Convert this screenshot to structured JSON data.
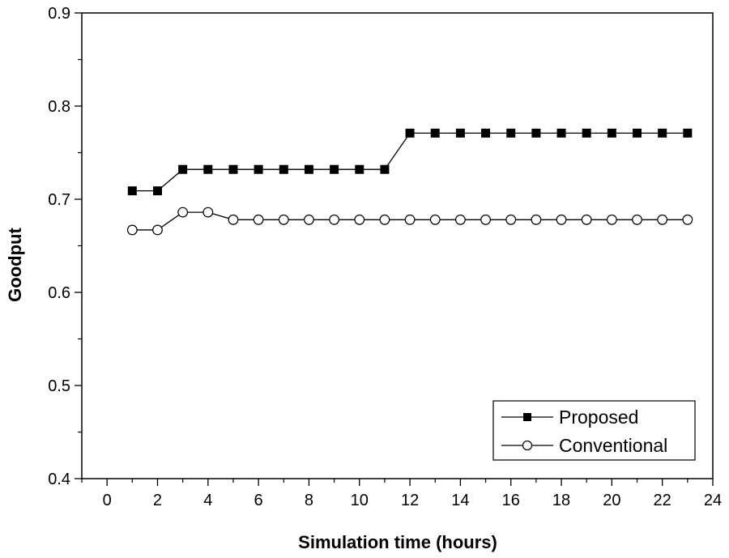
{
  "chart_data": {
    "type": "line",
    "title": "",
    "xlabel": "Simulation time (hours)",
    "ylabel": "Goodput",
    "xlim": [
      -1,
      24
    ],
    "ylim": [
      0.4,
      0.9
    ],
    "xticks": [
      0,
      2,
      4,
      6,
      8,
      10,
      12,
      14,
      16,
      18,
      20,
      22,
      24
    ],
    "xticks_minor": [
      -1,
      1,
      3,
      5,
      7,
      9,
      11,
      13,
      15,
      17,
      19,
      21,
      23
    ],
    "yticks": [
      0.4,
      0.5,
      0.6,
      0.7,
      0.8,
      0.9
    ],
    "xtick_labels": [
      "0",
      "2",
      "4",
      "6",
      "8",
      "10",
      "12",
      "14",
      "16",
      "18",
      "20",
      "22",
      "24"
    ],
    "ytick_labels": [
      "0.4",
      "0.5",
      "0.6",
      "0.7",
      "0.8",
      "0.9"
    ],
    "grid": false,
    "legend_position": "bottom-right",
    "x": [
      1,
      2,
      3,
      4,
      5,
      6,
      7,
      8,
      9,
      10,
      11,
      12,
      13,
      14,
      15,
      16,
      17,
      18,
      19,
      20,
      21,
      22,
      23
    ],
    "series": [
      {
        "name": "Proposed",
        "marker": "filled-square",
        "color": "#000000",
        "values": [
          0.709,
          0.709,
          0.732,
          0.732,
          0.732,
          0.732,
          0.732,
          0.732,
          0.732,
          0.732,
          0.732,
          0.771,
          0.771,
          0.771,
          0.771,
          0.771,
          0.771,
          0.771,
          0.771,
          0.771,
          0.771,
          0.771,
          0.771
        ]
      },
      {
        "name": "Conventional",
        "marker": "open-circle",
        "color": "#000000",
        "values": [
          0.667,
          0.667,
          0.686,
          0.686,
          0.678,
          0.678,
          0.678,
          0.678,
          0.678,
          0.678,
          0.678,
          0.678,
          0.678,
          0.678,
          0.678,
          0.678,
          0.678,
          0.678,
          0.678,
          0.678,
          0.678,
          0.678,
          0.678
        ]
      }
    ]
  }
}
